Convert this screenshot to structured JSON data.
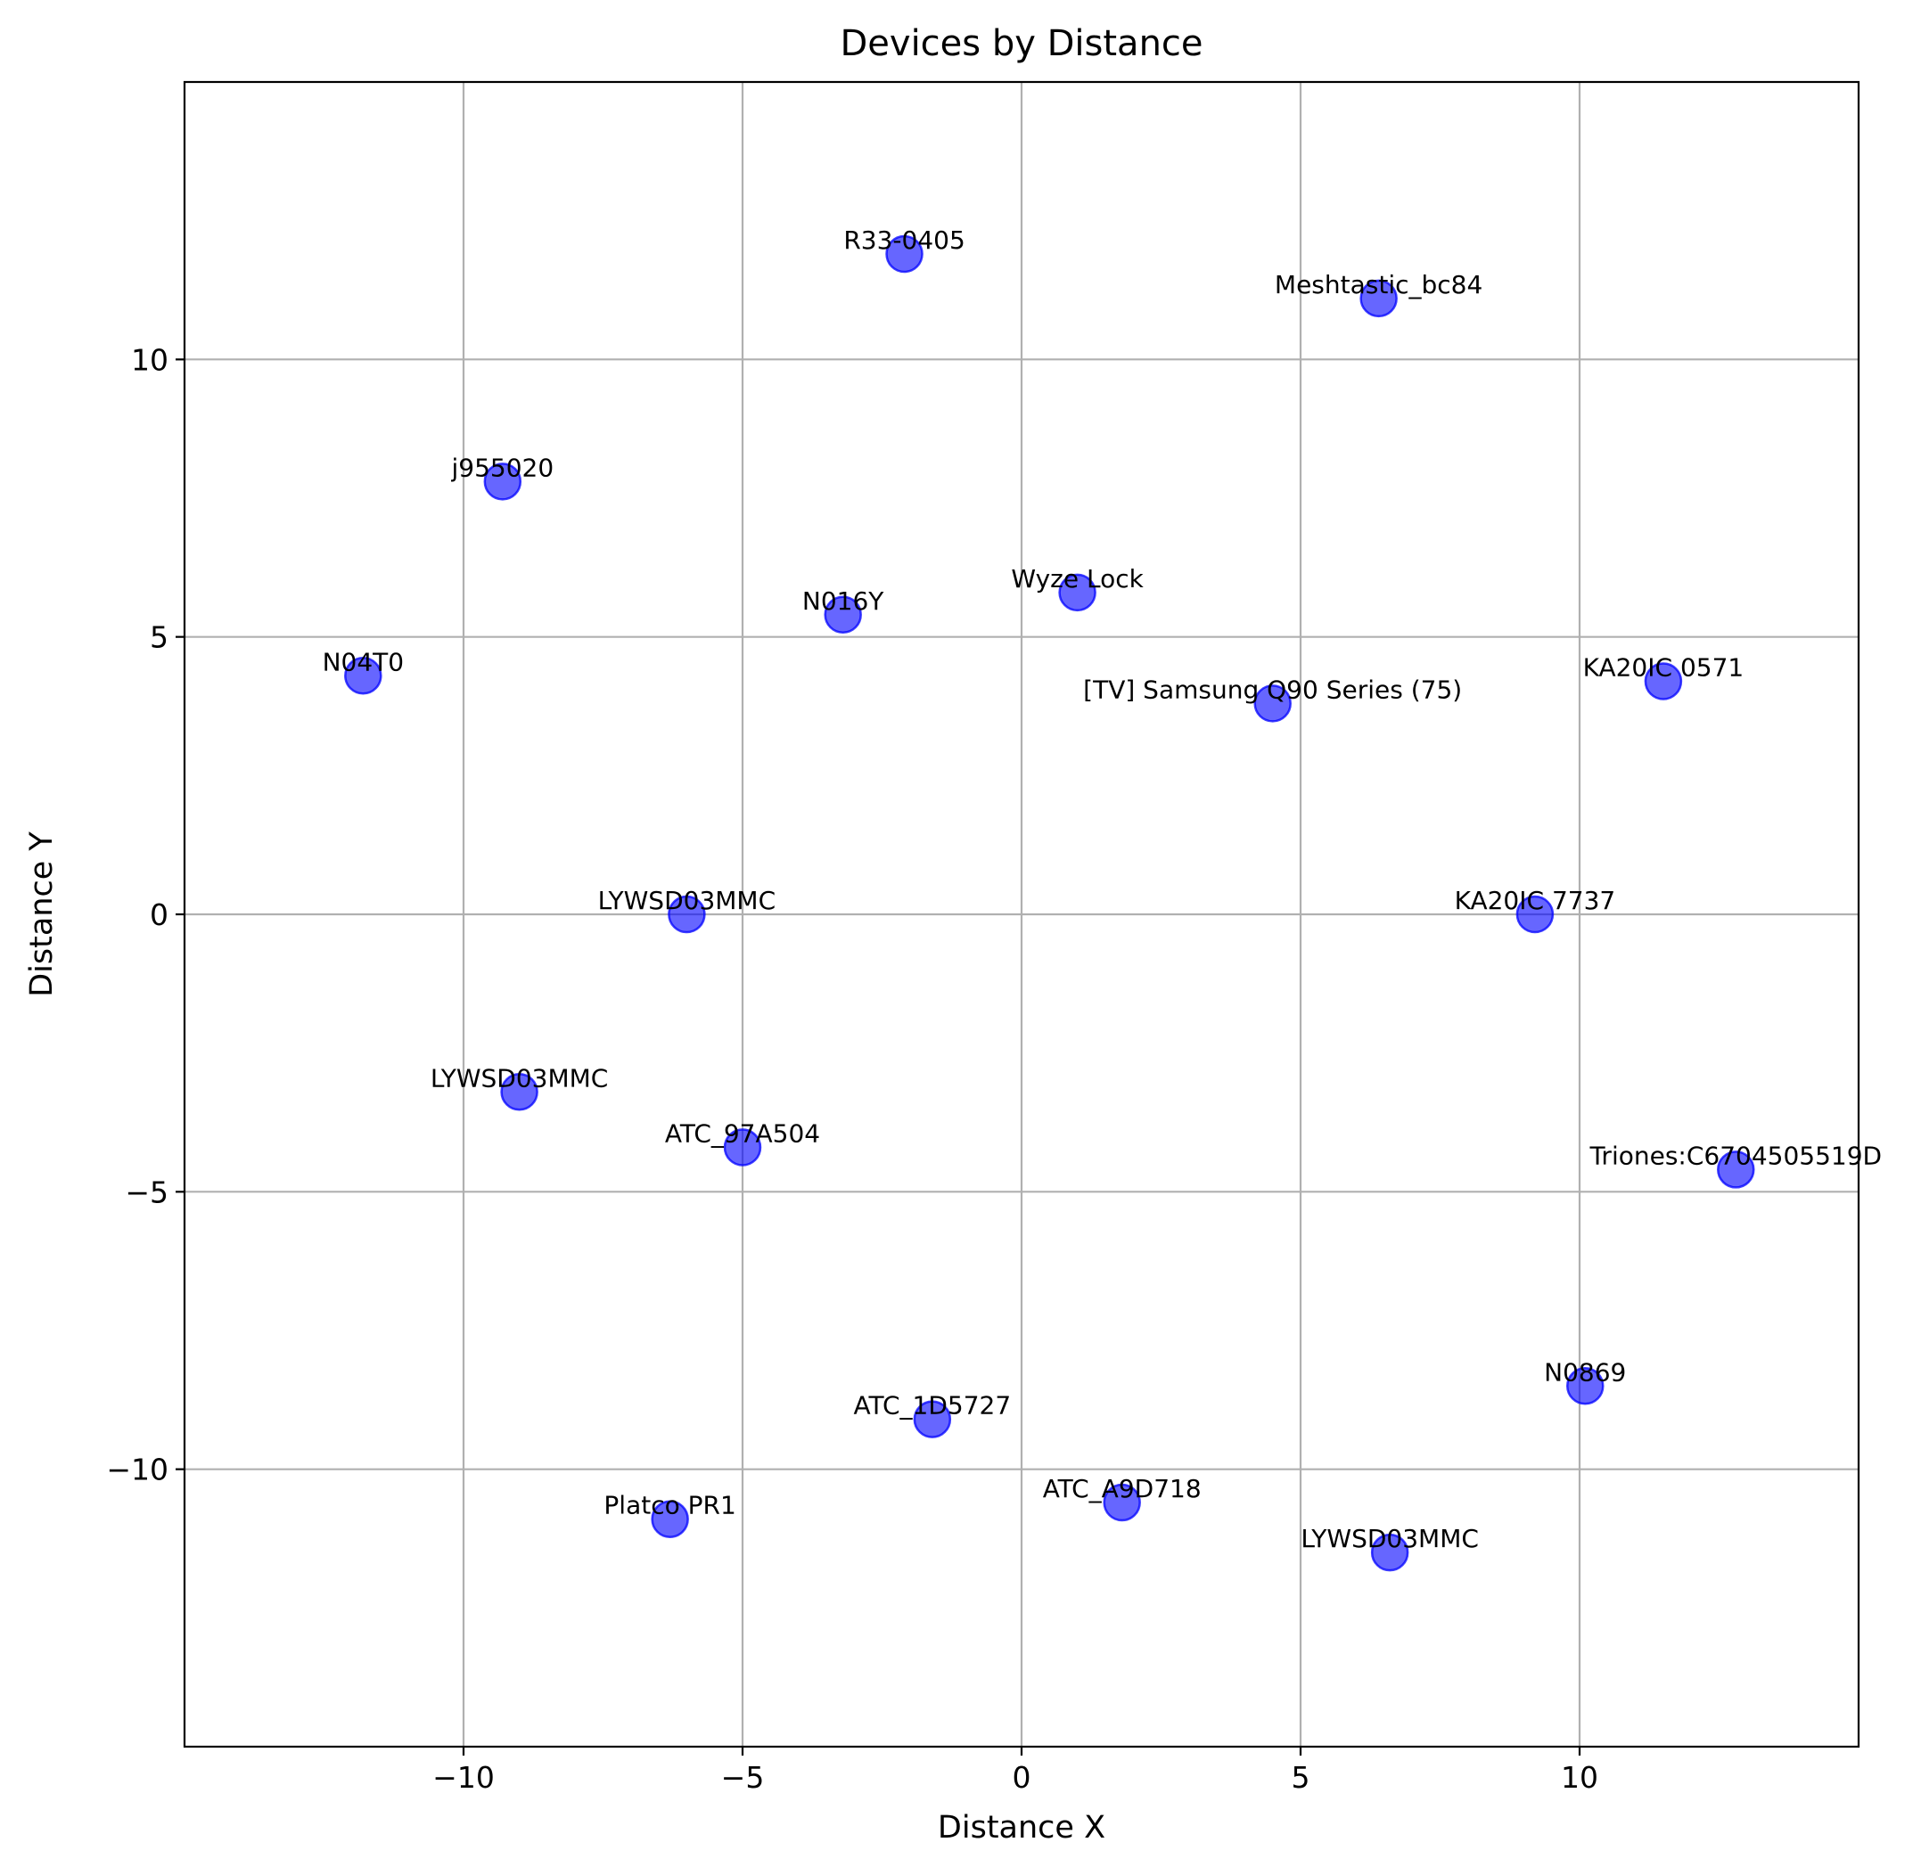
{
  "chart_data": {
    "type": "scatter",
    "title": "Devices by Distance",
    "xlabel": "Distance X",
    "ylabel": "Distance Y",
    "xlim": [
      -15,
      15
    ],
    "ylim": [
      -15,
      15
    ],
    "x_ticks": [
      -10,
      -5,
      0,
      5,
      10
    ],
    "y_ticks": [
      -10,
      -5,
      0,
      5,
      10
    ],
    "x_tick_labels": [
      "−10",
      "−5",
      "0",
      "5",
      "10"
    ],
    "y_tick_labels": [
      "−10",
      "−5",
      "0",
      "5",
      "10"
    ],
    "grid": true,
    "marker_color": "#0000ff",
    "marker_alpha": 0.6,
    "points": [
      {
        "label": "R33-0405",
        "x": -2.1,
        "y": 11.9
      },
      {
        "label": "Meshtastic_bc84",
        "x": 6.4,
        "y": 11.1
      },
      {
        "label": "j955020",
        "x": -9.3,
        "y": 7.8
      },
      {
        "label": "N016Y",
        "x": -3.2,
        "y": 5.4
      },
      {
        "label": "Wyze Lock",
        "x": 1.0,
        "y": 5.8
      },
      {
        "label": "N04T0",
        "x": -11.8,
        "y": 4.3
      },
      {
        "label": "[TV] Samsung Q90 Series (75)",
        "x": 4.5,
        "y": 3.8
      },
      {
        "label": "KA20IC 0571",
        "x": 11.5,
        "y": 4.2
      },
      {
        "label": "LYWSD03MMC",
        "x": -6.0,
        "y": 0.0
      },
      {
        "label": "KA20IC 7737",
        "x": 9.2,
        "y": 0.0
      },
      {
        "label": "LYWSD03MMC",
        "x": -9.0,
        "y": -3.2
      },
      {
        "label": "ATC_97A504",
        "x": -5.0,
        "y": -4.2
      },
      {
        "label": "Triones:C6704505519D",
        "x": 12.8,
        "y": -4.6
      },
      {
        "label": "N0869",
        "x": 10.1,
        "y": -8.5
      },
      {
        "label": "ATC_1D5727",
        "x": -1.6,
        "y": -9.1
      },
      {
        "label": "ATC_A9D718",
        "x": 1.8,
        "y": -10.6
      },
      {
        "label": "Platco PR1",
        "x": -6.3,
        "y": -10.9
      },
      {
        "label": "LYWSD03MMC",
        "x": 6.6,
        "y": -11.5
      }
    ]
  }
}
